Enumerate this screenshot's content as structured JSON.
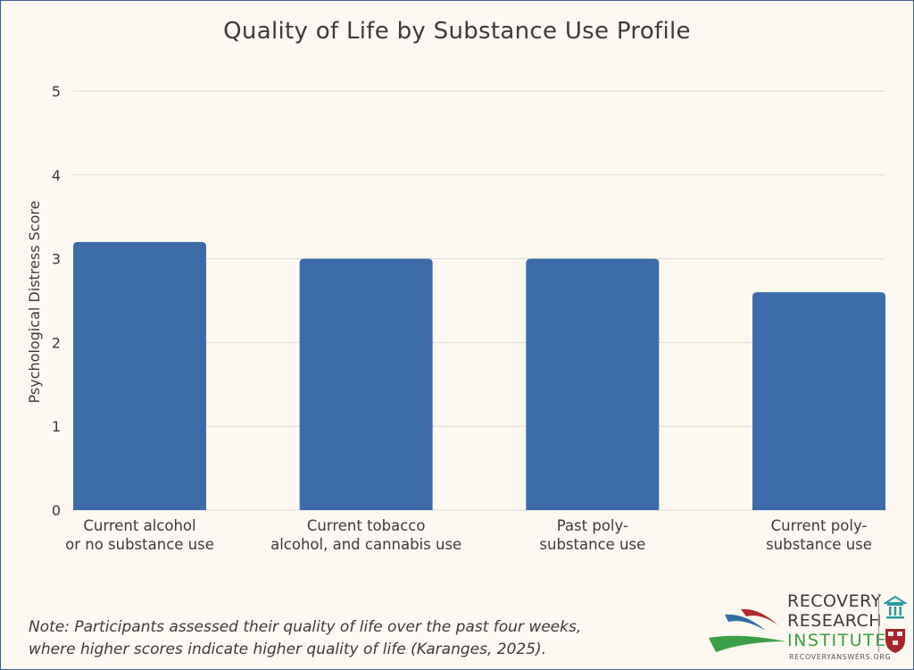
{
  "chart_data": {
    "type": "bar",
    "title": "Quality of Life by Substance Use Profile",
    "ylabel": "Psychological Distress Score",
    "xlabel": "",
    "ylim": [
      0,
      5
    ],
    "yticks": [
      "0",
      "1",
      "2",
      "3",
      "4",
      "5"
    ],
    "grid": true,
    "bar_color": "#3c6ca8",
    "categories": [
      [
        "Current alcohol",
        "or no substance use"
      ],
      [
        "Current tobacco",
        "alcohol, and cannabis use"
      ],
      [
        "Past poly-",
        "substance use"
      ],
      [
        "Current poly-",
        "substance use"
      ]
    ],
    "values": [
      3.2,
      3.0,
      3.0,
      2.6
    ]
  },
  "note": {
    "line1": "Note: Participants assessed their quality of life over the past four weeks,",
    "line2": "where higher scores indicate higher quality of life (Karanges, 2025)."
  },
  "logo": {
    "line1": "RECOVERY",
    "line2": "RESEARCH",
    "line3": "INSTITUTE",
    "url": "RECOVERYANSWERS.ORG",
    "colors": {
      "blue": "#2f6fa5",
      "red": "#b02a2e",
      "green": "#3aa045",
      "teal": "#2a9aa0"
    }
  }
}
